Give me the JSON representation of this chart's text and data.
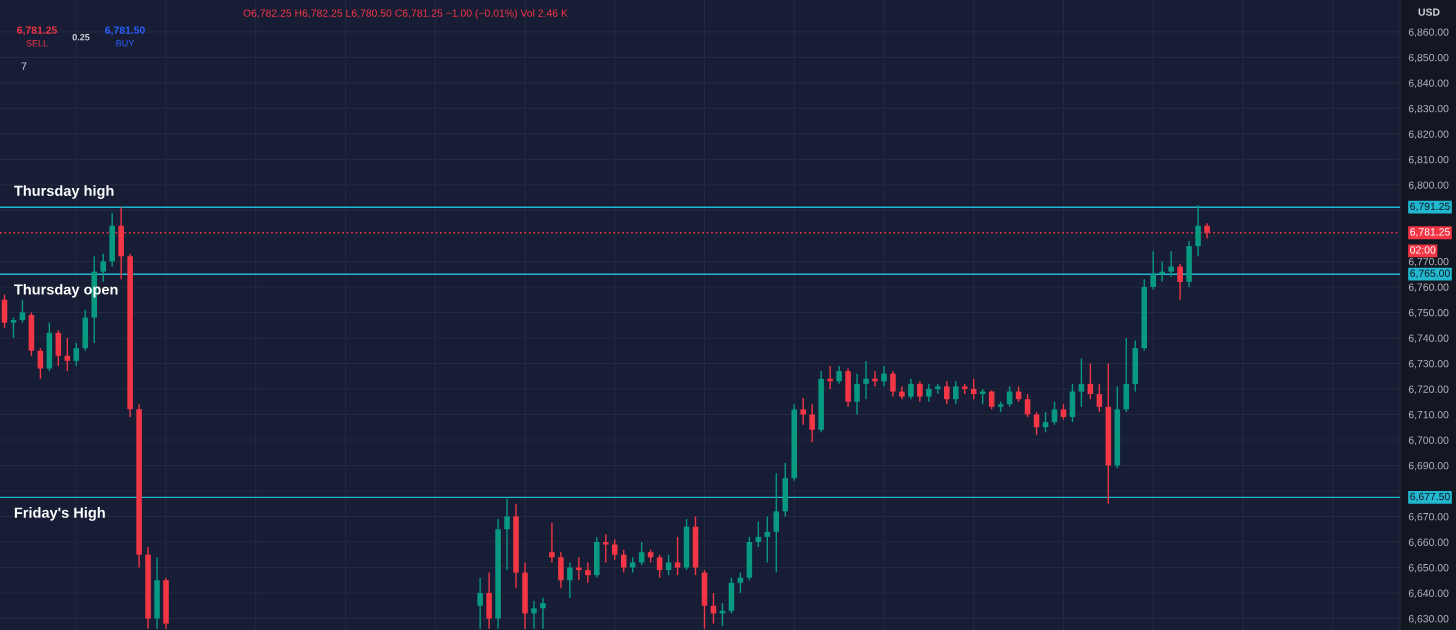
{
  "chart_data": {
    "type": "candlestick",
    "categories": [
      null,
      null,
      null,
      null,
      null,
      null,
      null,
      null,
      null,
      null,
      null,
      null,
      null,
      null,
      null,
      null,
      null,
      null,
      null,
      null,
      null,
      null,
      null,
      null,
      null,
      null,
      null,
      null,
      null,
      null,
      null,
      null,
      null,
      null,
      null,
      null,
      null,
      null,
      null,
      null,
      null,
      null,
      null,
      null,
      null,
      null,
      null,
      null,
      null,
      null,
      null,
      null,
      null,
      null,
      null,
      null,
      null,
      null,
      null,
      null,
      null,
      null,
      null,
      null,
      null,
      null,
      null,
      null,
      null,
      null,
      null,
      null,
      null,
      null,
      null,
      null,
      null,
      null,
      null,
      null,
      null,
      null,
      null,
      null,
      null,
      null,
      null,
      null,
      null,
      null,
      null,
      null,
      null,
      null,
      null,
      null,
      null,
      null,
      null,
      null,
      null,
      null,
      null,
      null,
      null,
      null,
      null,
      null,
      null,
      null,
      null,
      null,
      null,
      null,
      null,
      null,
      null,
      null,
      null,
      null,
      null,
      null,
      null,
      null,
      null,
      null,
      null,
      null,
      null,
      null,
      null,
      null,
      null,
      null,
      null,
      null,
      null,
      null,
      null,
      null,
      null,
      null,
      null,
      null,
      null,
      null,
      null,
      null,
      null,
      null,
      null,
      null,
      null,
      null,
      null,
      null
    ],
    "ohlc": [
      [
        6755,
        6757,
        6744,
        6746
      ],
      [
        6746,
        6748,
        6740,
        6747
      ],
      [
        6747,
        6755,
        6746,
        6750
      ],
      [
        6749,
        6750,
        6733,
        6735
      ],
      [
        6735,
        6736,
        6724,
        6728
      ],
      [
        6728,
        6746,
        6727,
        6742
      ],
      [
        6742,
        6743,
        6729,
        6733
      ],
      [
        6733,
        6740,
        6727,
        6731
      ],
      [
        6731,
        6738,
        6729,
        6736
      ],
      [
        6736,
        6751,
        6735,
        6748
      ],
      [
        6748,
        6772,
        6738,
        6766
      ],
      [
        6766,
        6773,
        6762,
        6770
      ],
      [
        6770,
        6789,
        6768,
        6784
      ],
      [
        6784,
        6791.25,
        6763,
        6772
      ],
      [
        6772,
        6773,
        6709,
        6712
      ],
      [
        6712,
        6714,
        6650,
        6655
      ],
      [
        6655,
        6658,
        6626,
        6630
      ],
      [
        6630,
        6654,
        6626,
        6645
      ],
      [
        6645,
        6646,
        6626,
        6628
      ],
      null,
      null,
      null,
      null,
      null,
      null,
      null,
      null,
      null,
      null,
      null,
      null,
      null,
      null,
      null,
      null,
      null,
      null,
      null,
      null,
      null,
      null,
      null,
      null,
      null,
      null,
      null,
      null,
      null,
      null,
      null,
      null,
      null,
      null,
      [
        6635,
        6646,
        6626,
        6640
      ],
      [
        6640,
        6648,
        6626,
        6630
      ],
      [
        6630,
        6669,
        6626,
        6665
      ],
      [
        6665,
        6677,
        6649,
        6670
      ],
      [
        6670,
        6675,
        6642,
        6648
      ],
      [
        6648,
        6652,
        6626,
        6632
      ],
      [
        6632,
        6637,
        6626,
        6634
      ],
      [
        6634,
        6638,
        6626,
        6636
      ],
      [
        6656,
        6667.5,
        6652,
        6654
      ],
      [
        6654,
        6656,
        6642,
        6645
      ],
      [
        6645,
        6652,
        6638,
        6650
      ],
      [
        6650,
        6654,
        6645,
        6649
      ],
      [
        6649,
        6652,
        6644,
        6647
      ],
      [
        6647,
        6662,
        6646,
        6660
      ],
      [
        6660,
        6663,
        6652,
        6659
      ],
      [
        6659,
        6661,
        6653,
        6655
      ],
      [
        6655,
        6657,
        6648,
        6650
      ],
      [
        6650,
        6654,
        6648,
        6652
      ],
      [
        6652,
        6660,
        6651,
        6656
      ],
      [
        6656,
        6657,
        6652,
        6654
      ],
      [
        6654,
        6655,
        6646,
        6649
      ],
      [
        6649,
        6655,
        6647,
        6652
      ],
      [
        6652,
        6662,
        6647,
        6650
      ],
      [
        6650,
        6669,
        6649,
        6666
      ],
      [
        6666,
        6670,
        6647,
        6650
      ],
      [
        6648,
        6649,
        6626,
        6635
      ],
      [
        6635,
        6640,
        6628,
        6632
      ],
      [
        6632,
        6636,
        6627,
        6633
      ],
      [
        6633,
        6646,
        6632,
        6644
      ],
      [
        6644,
        6648,
        6640,
        6646
      ],
      [
        6646,
        6662,
        6645,
        6660
      ],
      [
        6660,
        6668,
        6658,
        6662
      ],
      [
        6662,
        6670,
        6652,
        6664
      ],
      [
        6664,
        6687,
        6648,
        6672
      ],
      [
        6672,
        6691,
        6670,
        6685
      ],
      [
        6685,
        6714,
        6684,
        6712
      ],
      [
        6712,
        6716.5,
        6706,
        6710
      ],
      [
        6710,
        6714,
        6699,
        6704
      ],
      [
        6704,
        6727,
        6703,
        6724
      ],
      [
        6724,
        6729,
        6720,
        6723
      ],
      [
        6723,
        6729,
        6722,
        6727
      ],
      [
        6727,
        6728,
        6713,
        6715
      ],
      [
        6715,
        6726,
        6710,
        6722
      ],
      [
        6722,
        6731,
        6716,
        6724
      ],
      [
        6724,
        6727,
        6721,
        6723
      ],
      [
        6723,
        6729,
        6721,
        6726
      ],
      [
        6726,
        6727,
        6717,
        6719
      ],
      [
        6719,
        6721,
        6716,
        6717
      ],
      [
        6717,
        6724,
        6716,
        6722
      ],
      [
        6722,
        6723,
        6715,
        6717
      ],
      [
        6717,
        6722,
        6715,
        6720
      ],
      [
        6720,
        6722,
        6718,
        6721
      ],
      [
        6721,
        6723,
        6714,
        6716
      ],
      [
        6716,
        6723,
        6714,
        6721
      ],
      [
        6721,
        6722,
        6718,
        6720
      ],
      [
        6720,
        6724,
        6716,
        6718
      ],
      [
        6718,
        6720,
        6714,
        6719
      ],
      [
        6719,
        6719.5,
        6712,
        6713
      ],
      [
        6713,
        6715,
        6711,
        6714
      ],
      [
        6714,
        6721,
        6713,
        6719
      ],
      [
        6719,
        6721,
        6715,
        6716
      ],
      [
        6716,
        6718,
        6709,
        6710
      ],
      [
        6710,
        6711,
        6702,
        6705
      ],
      [
        6705,
        6711,
        6703,
        6707
      ],
      [
        6707,
        6715,
        6706,
        6712
      ],
      [
        6712,
        6714,
        6708,
        6709
      ],
      [
        6709,
        6722,
        6707,
        6719
      ],
      [
        6719,
        6732,
        6713,
        6722
      ],
      [
        6722,
        6730,
        6716,
        6718
      ],
      [
        6718,
        6722,
        6711,
        6713
      ],
      [
        6713,
        6730,
        6675,
        6690
      ],
      [
        6690,
        6721,
        6689,
        6712
      ],
      [
        6712,
        6740,
        6711,
        6722
      ],
      [
        6722,
        6739,
        6719,
        6736
      ],
      [
        6736,
        6763,
        6735,
        6760
      ],
      [
        6760,
        6774,
        6759,
        6765
      ],
      [
        6765,
        6770,
        6762,
        6766
      ],
      [
        6766,
        6774,
        6764,
        6768
      ],
      [
        6768,
        6769,
        6755,
        6762
      ],
      [
        6762,
        6778,
        6760,
        6776
      ],
      [
        6776,
        6792,
        6772,
        6784
      ],
      [
        6784,
        6785,
        6779,
        6781.25
      ],
      null,
      null,
      null,
      null,
      null,
      null,
      null,
      null,
      null,
      null,
      null,
      null,
      null,
      null,
      null,
      null,
      null,
      null,
      null,
      null,
      null
    ],
    "colors": [
      "#f23645",
      "#089981",
      "#089981",
      "#f23645",
      "#f23645",
      "#089981",
      "#f23645",
      "#f23645",
      "#089981",
      "#089981",
      "#089981",
      "#089981",
      "#089981",
      "#f23645",
      "#f23645",
      "#f23645",
      "#f23645",
      "#089981",
      "#f23645",
      null,
      null,
      null,
      null,
      null,
      null,
      null,
      null,
      null,
      null,
      null,
      null,
      null,
      null,
      null,
      null,
      null,
      null,
      null,
      null,
      null,
      null,
      null,
      null,
      null,
      null,
      null,
      null,
      null,
      null,
      null,
      null,
      null,
      null,
      "#089981",
      "#f23645",
      "#089981",
      "#089981",
      "#f23645",
      "#f23645",
      "#089981",
      "#089981",
      "#f23645",
      "#f23645",
      "#089981",
      "#f23645",
      "#f23645",
      "#089981",
      "#f23645",
      "#f23645",
      "#f23645",
      "#089981",
      "#089981",
      "#f23645",
      "#f23645",
      "#089981",
      "#f23645",
      "#089981",
      "#f23645",
      "#f23645",
      "#f23645",
      "#089981",
      "#089981",
      "#089981",
      "#089981",
      "#089981",
      "#089981",
      "#089981",
      "#089981",
      "#089981",
      "#f23645",
      "#f23645",
      "#089981",
      "#f23645",
      "#089981",
      "#f23645",
      "#089981",
      "#089981",
      "#f23645",
      "#089981",
      "#f23645",
      "#f23645",
      "#089981",
      "#f23645",
      "#089981",
      "#089981",
      "#f23645",
      "#089981",
      "#f23645",
      "#f23645",
      "#089981",
      "#f23645",
      "#089981",
      "#089981",
      "#f23645",
      "#f23645",
      "#f23645",
      "#089981",
      "#089981",
      "#f23645",
      "#089981",
      "#089981",
      "#f23645",
      "#f23645",
      "#f23645",
      "#089981",
      "#089981",
      "#089981",
      "#089981",
      "#089981",
      "#089981",
      "#089981",
      "#f23645",
      "#089981",
      "#089981",
      "#f23645",
      null,
      null,
      null,
      null,
      null,
      null,
      null,
      null,
      null,
      null,
      null,
      null,
      null,
      null,
      null,
      null,
      null,
      null,
      null,
      null,
      null
    ],
    "ylim": [
      6625.5,
      6872.5
    ],
    "yticks": [
      {
        "value": 6630,
        "label": "6,630.00"
      },
      {
        "value": 6640,
        "label": "6,640.00"
      },
      {
        "value": 6650,
        "label": "6,650.00"
      },
      {
        "value": 6660,
        "label": "6,660.00"
      },
      {
        "value": 6670,
        "label": "6,670.00"
      },
      {
        "value": 6680,
        "label": null
      },
      {
        "value": 6690,
        "label": "6,690.00"
      },
      {
        "value": 6700,
        "label": "6,700.00"
      },
      {
        "value": 6710,
        "label": "6,710.00"
      },
      {
        "value": 6720,
        "label": "6,720.00"
      },
      {
        "value": 6730,
        "label": "6,730.00"
      },
      {
        "value": 6740,
        "label": "6,740.00"
      },
      {
        "value": 6750,
        "label": "6,750.00"
      },
      {
        "value": 6760,
        "label": "6,760.00"
      },
      {
        "value": 6770,
        "label": "6,770.00"
      },
      {
        "value": 6780,
        "label": null
      },
      {
        "value": 6790,
        "label": null
      },
      {
        "value": 6800,
        "label": "6,800.00"
      },
      {
        "value": 6810,
        "label": "6,810.00"
      },
      {
        "value": 6820,
        "label": "6,820.00"
      },
      {
        "value": 6830,
        "label": "6,830.00"
      },
      {
        "value": 6840,
        "label": "6,840.00"
      },
      {
        "value": 6850,
        "label": "6,850.00"
      },
      {
        "value": 6860,
        "label": "6,860.00"
      }
    ],
    "tick_labels": "y",
    "grid": true,
    "ref_lines": [
      {
        "axis": "y",
        "value": 6791.25,
        "label": "Thursday high",
        "color": "#22b8cf",
        "line_style": "solid"
      },
      {
        "axis": "y",
        "value": 6781.25,
        "color": "#f23645",
        "line_style": "dotted"
      },
      {
        "axis": "y",
        "value": 6765.0,
        "label": "Thursday open",
        "color": "#22b8cf",
        "line_style": "solid"
      },
      {
        "axis": "y",
        "value": 6677.5,
        "label": "Friday's High",
        "color": "#22b8cf",
        "line_style": "solid"
      }
    ],
    "annotations": [
      "O6,782.25 H6,782.25 L6,780.50 C6,781.25 −1.00 (−0.01%) Vol 2.46 K",
      "6,781.25",
      "SELL",
      "0.25",
      "6,781.50",
      "BUY",
      "7",
      "USD",
      "6,791.25",
      "6,781.25",
      "02:00",
      "6,765.00",
      "6,677.50"
    ]
  }
}
